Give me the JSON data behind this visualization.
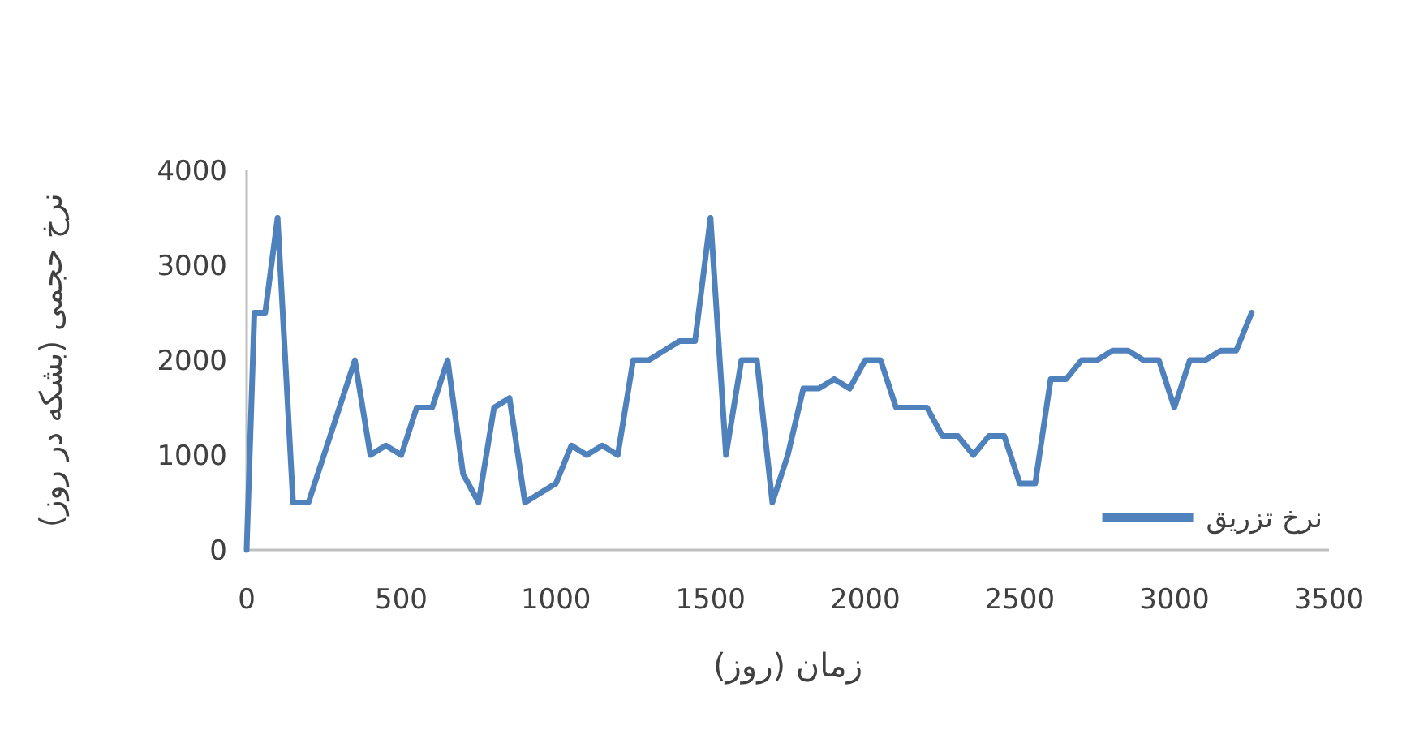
{
  "chart_data": {
    "type": "line",
    "xlabel": "زمان (روز)",
    "ylabel": "نرخ حجمی (بشکه در روز)",
    "x": [
      0,
      25,
      60,
      100,
      150,
      200,
      350,
      400,
      450,
      500,
      550,
      600,
      650,
      700,
      750,
      800,
      850,
      900,
      1000,
      1050,
      1100,
      1150,
      1200,
      1250,
      1300,
      1400,
      1450,
      1500,
      1550,
      1600,
      1650,
      1700,
      1750,
      1800,
      1850,
      1900,
      1950,
      2000,
      2050,
      2100,
      2200,
      2250,
      2300,
      2350,
      2400,
      2450,
      2500,
      2550,
      2600,
      2650,
      2700,
      2750,
      2800,
      2850,
      2900,
      2950,
      3000,
      3050,
      3100,
      3150,
      3200,
      3250
    ],
    "series": [
      {
        "name": "نرخ تزریق",
        "color": "#4f81bd",
        "values": [
          0,
          2500,
          2500,
          3500,
          500,
          500,
          2000,
          1000,
          1100,
          1000,
          1500,
          1500,
          2000,
          800,
          500,
          1500,
          1600,
          500,
          700,
          1100,
          1000,
          1100,
          1000,
          2000,
          2000,
          2200,
          2200,
          3500,
          1000,
          2000,
          2000,
          500,
          1000,
          1700,
          1700,
          1800,
          1700,
          2000,
          2000,
          1500,
          1500,
          1200,
          1200,
          1000,
          1200,
          1200,
          700,
          700,
          1800,
          1800,
          2000,
          2000,
          2100,
          2100,
          2000,
          2000,
          1500,
          2000,
          2000,
          2100,
          2100,
          2500
        ]
      }
    ],
    "xlim": [
      0,
      3500
    ],
    "xticks": [
      0,
      500,
      1000,
      1500,
      2000,
      2500,
      3000,
      3500
    ],
    "ylim": [
      0,
      4000
    ],
    "yticks": [
      0,
      1000,
      2000,
      3000,
      4000
    ],
    "grid": false,
    "legend": "bottom right",
    "marker": "none",
    "line_style": "solid"
  }
}
